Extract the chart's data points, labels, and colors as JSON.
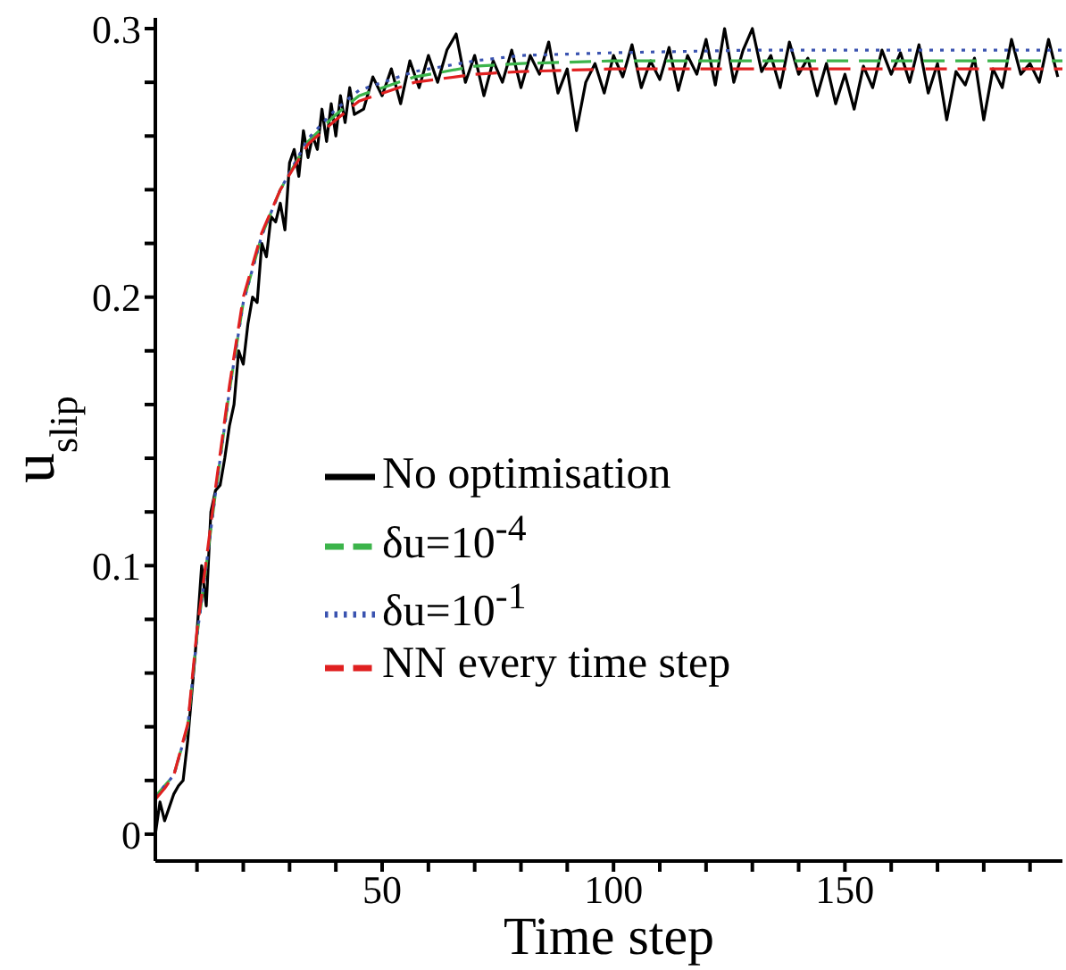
{
  "chart_data": {
    "type": "line",
    "xlabel": "Time step",
    "ylabel": "u$_{slip}$",
    "xlim": [
      1,
      197
    ],
    "ylim": [
      -0.01,
      0.304
    ],
    "xticks": [
      {
        "value": 10,
        "label": null
      },
      {
        "value": 20,
        "label": null
      },
      {
        "value": 30,
        "label": null
      },
      {
        "value": 40,
        "label": null
      },
      50,
      {
        "value": 60,
        "label": null
      },
      {
        "value": 70,
        "label": null
      },
      {
        "value": 80,
        "label": null
      },
      {
        "value": 90,
        "label": null
      },
      100,
      {
        "value": 110,
        "label": null
      },
      {
        "value": 120,
        "label": null
      },
      {
        "value": 130,
        "label": null
      },
      {
        "value": 140,
        "label": null
      },
      150,
      {
        "value": 160,
        "label": null
      },
      {
        "value": 170,
        "label": null
      },
      {
        "value": 180,
        "label": null
      },
      {
        "value": 190,
        "label": null
      }
    ],
    "yticks": [
      0,
      {
        "value": 0.02,
        "label": null
      },
      {
        "value": 0.04,
        "label": null
      },
      {
        "value": 0.06,
        "label": null
      },
      {
        "value": 0.08,
        "label": null
      },
      0.1,
      {
        "value": 0.12,
        "label": null
      },
      {
        "value": 0.14,
        "label": null
      },
      {
        "value": 0.16,
        "label": null
      },
      {
        "value": 0.18,
        "label": null
      },
      0.2,
      {
        "value": 0.22,
        "label": null
      },
      {
        "value": 0.24,
        "label": null
      },
      {
        "value": 0.26,
        "label": null
      },
      {
        "value": 0.28,
        "label": null
      },
      0.3
    ],
    "legend": "bottom left",
    "marker": "none",
    "series": [
      {
        "name": "No optimisation",
        "color": "#000000",
        "line_style": "solid",
        "x": [
          1,
          2,
          3,
          4,
          5,
          6,
          7,
          8,
          9,
          10,
          11,
          12,
          13,
          14,
          15,
          16,
          17,
          18,
          19,
          20,
          21,
          22,
          23,
          24,
          25,
          26,
          27,
          28,
          29,
          30,
          31,
          32,
          33,
          34,
          35,
          36,
          37,
          38,
          39,
          40,
          41,
          42,
          43,
          44,
          46,
          48,
          50,
          52,
          54,
          56,
          58,
          60,
          62,
          64,
          66,
          68,
          70,
          72,
          74,
          76,
          78,
          80,
          82,
          84,
          86,
          88,
          90,
          92,
          94,
          96,
          98,
          100,
          102,
          104,
          106,
          108,
          110,
          112,
          114,
          116,
          118,
          120,
          122,
          124,
          126,
          128,
          130,
          132,
          134,
          136,
          138,
          140,
          142,
          144,
          146,
          148,
          150,
          152,
          154,
          156,
          158,
          160,
          162,
          164,
          166,
          168,
          170,
          172,
          174,
          176,
          178,
          180,
          182,
          184,
          186,
          188,
          190,
          192,
          194,
          196
        ],
        "values": [
          0.0,
          0.012,
          0.005,
          0.01,
          0.015,
          0.018,
          0.02,
          0.035,
          0.055,
          0.075,
          0.1,
          0.085,
          0.12,
          0.128,
          0.13,
          0.14,
          0.152,
          0.16,
          0.18,
          0.175,
          0.19,
          0.2,
          0.198,
          0.22,
          0.215,
          0.23,
          0.228,
          0.235,
          0.225,
          0.25,
          0.255,
          0.245,
          0.262,
          0.252,
          0.26,
          0.255,
          0.27,
          0.258,
          0.272,
          0.26,
          0.275,
          0.265,
          0.278,
          0.268,
          0.27,
          0.282,
          0.275,
          0.285,
          0.272,
          0.288,
          0.278,
          0.29,
          0.28,
          0.292,
          0.298,
          0.28,
          0.29,
          0.275,
          0.288,
          0.28,
          0.292,
          0.278,
          0.29,
          0.283,
          0.295,
          0.276,
          0.285,
          0.262,
          0.28,
          0.287,
          0.276,
          0.29,
          0.282,
          0.294,
          0.278,
          0.288,
          0.281,
          0.293,
          0.277,
          0.29,
          0.283,
          0.296,
          0.279,
          0.3,
          0.28,
          0.292,
          0.3,
          0.284,
          0.29,
          0.278,
          0.295,
          0.283,
          0.289,
          0.275,
          0.287,
          0.272,
          0.283,
          0.27,
          0.286,
          0.278,
          0.292,
          0.283,
          0.291,
          0.28,
          0.294,
          0.276,
          0.287,
          0.266,
          0.284,
          0.279,
          0.289,
          0.266,
          0.285,
          0.278,
          0.296,
          0.283,
          0.287,
          0.28,
          0.296,
          0.282
        ]
      },
      {
        "name": "δu=10$^{-4}$",
        "color": "#3cb44b",
        "line_style": "dashed",
        "x": [
          1,
          3,
          5,
          8,
          10,
          12,
          14,
          17,
          20,
          24,
          28,
          34,
          40,
          45,
          57,
          70,
          80,
          100,
          130,
          160,
          197
        ],
        "values": [
          0.014,
          0.018,
          0.022,
          0.04,
          0.074,
          0.1,
          0.127,
          0.165,
          0.198,
          0.223,
          0.24,
          0.258,
          0.268,
          0.275,
          0.282,
          0.286,
          0.287,
          0.288,
          0.288,
          0.288,
          0.288
        ]
      },
      {
        "name": "δu=10$^{-1}$",
        "color": "#3a53b0",
        "line_style": "dotted",
        "x": [
          1,
          3,
          5,
          8,
          10,
          12,
          14,
          17,
          20,
          24,
          28,
          34,
          40,
          45,
          57,
          70,
          80,
          100,
          130,
          160,
          197
        ],
        "values": [
          0.014,
          0.018,
          0.022,
          0.04,
          0.074,
          0.1,
          0.127,
          0.165,
          0.198,
          0.223,
          0.24,
          0.259,
          0.27,
          0.277,
          0.284,
          0.288,
          0.29,
          0.291,
          0.292,
          0.292,
          0.292
        ]
      },
      {
        "name": "NN every time step",
        "color": "#e02020",
        "line_style": "dashed",
        "x": [
          1,
          3,
          5,
          8,
          10,
          12,
          14,
          17,
          20,
          24,
          28,
          34,
          40,
          45,
          57,
          70,
          80,
          100,
          130,
          160,
          197
        ],
        "values": [
          0.013,
          0.017,
          0.022,
          0.041,
          0.076,
          0.102,
          0.129,
          0.167,
          0.2,
          0.224,
          0.24,
          0.257,
          0.266,
          0.273,
          0.28,
          0.283,
          0.284,
          0.285,
          0.285,
          0.285,
          0.285
        ]
      }
    ]
  }
}
